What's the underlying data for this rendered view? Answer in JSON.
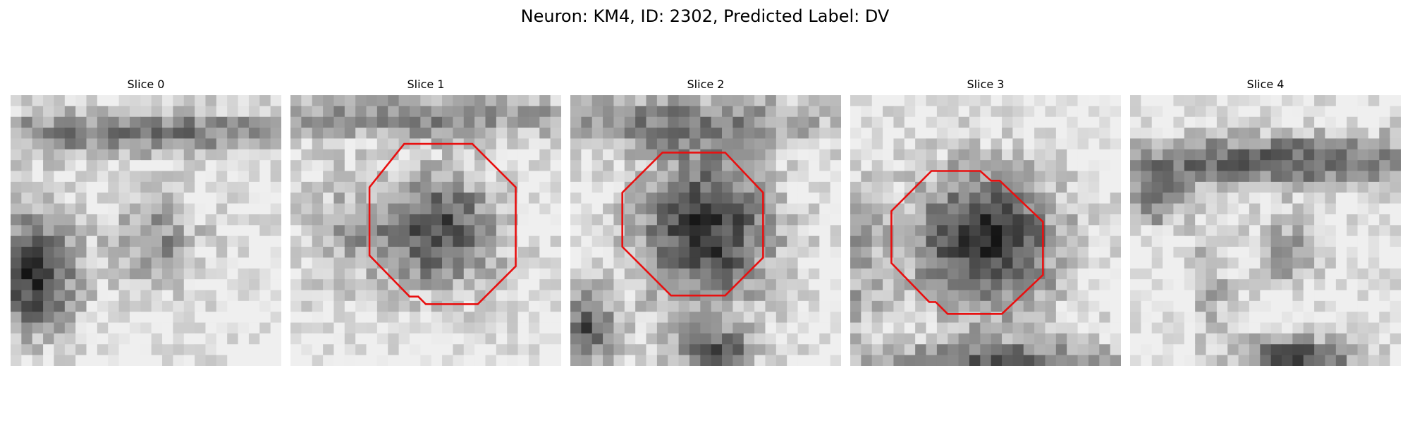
{
  "figure": {
    "title": "Neuron: KM4, ID: 2302, Predicted Label: DV"
  },
  "panels": [
    {
      "label": "Slice 0",
      "outline": false,
      "base": 0
    },
    {
      "label": "Slice 1",
      "outline": true,
      "base": 1
    },
    {
      "label": "Slice 2",
      "outline": true,
      "base": 2
    },
    {
      "label": "Slice 3",
      "outline": true,
      "base": 3
    },
    {
      "label": "Slice 4",
      "outline": false,
      "base": 4
    }
  ],
  "colors": {
    "outline": "#e81010",
    "image_light": "#efefef",
    "image_dark": "#141414"
  }
}
